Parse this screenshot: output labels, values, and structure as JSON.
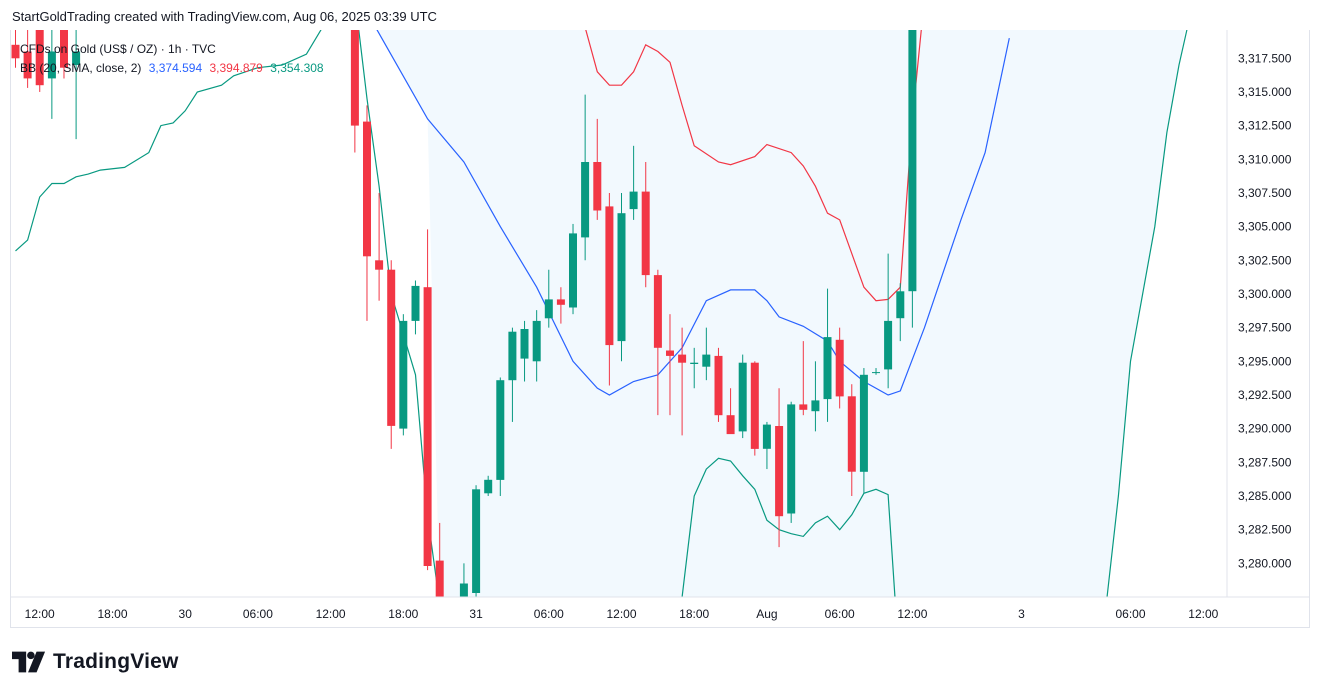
{
  "header": {
    "attribution": "StartGoldTrading created with TradingView.com, Aug 06, 2025 03:39 UTC"
  },
  "legend": {
    "symbol": "CFDs on Gold (US$ / OZ) · 1h · TVC",
    "indicator": "BB (20, SMA, close, 2)",
    "basis": "3,374.594",
    "upper": "3,394.879",
    "lower": "3,354.308"
  },
  "brand": {
    "wordmark": "TradingView"
  },
  "colors": {
    "up": "#089981",
    "down": "#f23645",
    "basis": "#2962ff",
    "upper": "#f23645",
    "lower": "#089981",
    "fill": "#e3f2fd"
  },
  "chart_data": {
    "type": "candlestick",
    "ylim": [
      3277.5,
      3319.6
    ],
    "y_ticks": [
      "3,317.500",
      "3,315.000",
      "3,312.500",
      "3,310.000",
      "3,307.500",
      "3,305.000",
      "3,302.500",
      "3,300.000",
      "3,297.500",
      "3,295.000",
      "3,292.500",
      "3,290.000",
      "3,287.500",
      "3,285.000",
      "3,282.500",
      "3,280.000"
    ],
    "x_ticks": [
      {
        "label": "12:00",
        "i": 2
      },
      {
        "label": "18:00",
        "i": 8
      },
      {
        "label": "30",
        "i": 14
      },
      {
        "label": "06:00",
        "i": 20
      },
      {
        "label": "12:00",
        "i": 26
      },
      {
        "label": "18:00",
        "i": 32
      },
      {
        "label": "31",
        "i": 38
      },
      {
        "label": "06:00",
        "i": 44
      },
      {
        "label": "12:00",
        "i": 50
      },
      {
        "label": "18:00",
        "i": 56
      },
      {
        "label": "Aug",
        "i": 62
      },
      {
        "label": "06:00",
        "i": 68
      },
      {
        "label": "12:00",
        "i": 74
      },
      {
        "label": "3",
        "i": 83
      },
      {
        "label": "06:00",
        "i": 92
      },
      {
        "label": "12:00",
        "i": 98
      }
    ],
    "candles": [
      {
        "i": 0,
        "o": 3318.5,
        "h": 3320.5,
        "l": 3316.8,
        "c": 3317.5
      },
      {
        "i": 1,
        "o": 3318.0,
        "h": 3320.0,
        "l": 3315.3,
        "c": 3316.0
      },
      {
        "i": 2,
        "o": 3320.0,
        "h": 3321.0,
        "l": 3315.0,
        "c": 3315.5
      },
      {
        "i": 3,
        "o": 3316.0,
        "h": 3321.5,
        "l": 3313.0,
        "c": 3318.0
      },
      {
        "i": 4,
        "o": 3321.0,
        "h": 3322.0,
        "l": 3316.0,
        "c": 3316.8
      },
      {
        "i": 5,
        "o": 3317.0,
        "h": 3322.0,
        "l": 3311.5,
        "c": 3318.0
      },
      {
        "i": 28,
        "o": 3322.0,
        "h": 3323.0,
        "l": 3310.5,
        "c": 3312.5
      },
      {
        "i": 29,
        "o": 3312.8,
        "h": 3314.0,
        "l": 3298.0,
        "c": 3302.8
      },
      {
        "i": 30,
        "o": 3302.5,
        "h": 3307.5,
        "l": 3299.5,
        "c": 3301.8
      },
      {
        "i": 31,
        "o": 3301.8,
        "h": 3302.5,
        "l": 3288.5,
        "c": 3290.2
      },
      {
        "i": 32,
        "o": 3290.0,
        "h": 3298.5,
        "l": 3289.5,
        "c": 3298.0
      },
      {
        "i": 33,
        "o": 3298.0,
        "h": 3301.0,
        "l": 3297.0,
        "c": 3300.6
      },
      {
        "i": 34,
        "o": 3300.5,
        "h": 3304.8,
        "l": 3279.5,
        "c": 3279.8
      },
      {
        "i": 35,
        "o": 3280.2,
        "h": 3283.0,
        "l": 3277.0,
        "c": 3277.5
      },
      {
        "i": 37,
        "o": 3277.5,
        "h": 3280.0,
        "l": 3277.0,
        "c": 3278.5
      },
      {
        "i": 38,
        "o": 3277.8,
        "h": 3285.8,
        "l": 3277.2,
        "c": 3285.5
      },
      {
        "i": 39,
        "o": 3285.2,
        "h": 3286.5,
        "l": 3285.0,
        "c": 3286.2
      },
      {
        "i": 40,
        "o": 3286.2,
        "h": 3293.8,
        "l": 3285.0,
        "c": 3293.6
      },
      {
        "i": 41,
        "o": 3293.6,
        "h": 3297.5,
        "l": 3290.5,
        "c": 3297.2
      },
      {
        "i": 42,
        "o": 3295.2,
        "h": 3298.0,
        "l": 3293.5,
        "c": 3297.4
      },
      {
        "i": 43,
        "o": 3295.0,
        "h": 3298.8,
        "l": 3293.5,
        "c": 3298.0
      },
      {
        "i": 44,
        "o": 3298.2,
        "h": 3301.8,
        "l": 3297.5,
        "c": 3299.6
      },
      {
        "i": 45,
        "o": 3299.6,
        "h": 3300.5,
        "l": 3297.8,
        "c": 3299.2
      },
      {
        "i": 46,
        "o": 3299.0,
        "h": 3305.2,
        "l": 3298.5,
        "c": 3304.5
      },
      {
        "i": 47,
        "o": 3304.2,
        "h": 3314.8,
        "l": 3302.5,
        "c": 3309.8
      },
      {
        "i": 48,
        "o": 3309.8,
        "h": 3313.0,
        "l": 3305.5,
        "c": 3306.2
      },
      {
        "i": 49,
        "o": 3306.5,
        "h": 3307.5,
        "l": 3293.2,
        "c": 3296.2
      },
      {
        "i": 50,
        "o": 3296.5,
        "h": 3307.5,
        "l": 3295.0,
        "c": 3306.0
      },
      {
        "i": 51,
        "o": 3306.3,
        "h": 3311.0,
        "l": 3305.5,
        "c": 3307.6
      },
      {
        "i": 52,
        "o": 3307.6,
        "h": 3309.8,
        "l": 3300.5,
        "c": 3301.4
      },
      {
        "i": 53,
        "o": 3301.4,
        "h": 3301.8,
        "l": 3291.0,
        "c": 3296.0
      },
      {
        "i": 54,
        "o": 3295.8,
        "h": 3298.5,
        "l": 3291.0,
        "c": 3295.4
      },
      {
        "i": 55,
        "o": 3295.5,
        "h": 3297.5,
        "l": 3289.5,
        "c": 3294.9
      },
      {
        "i": 56,
        "o": 3294.8,
        "h": 3296.0,
        "l": 3293.0,
        "c": 3294.9
      },
      {
        "i": 57,
        "o": 3294.6,
        "h": 3297.5,
        "l": 3293.6,
        "c": 3295.5
      },
      {
        "i": 58,
        "o": 3295.4,
        "h": 3296.0,
        "l": 3290.5,
        "c": 3291.0
      },
      {
        "i": 59,
        "o": 3291.0,
        "h": 3293.0,
        "l": 3289.8,
        "c": 3289.6
      },
      {
        "i": 60,
        "o": 3289.8,
        "h": 3295.5,
        "l": 3289.3,
        "c": 3294.9
      },
      {
        "i": 61,
        "o": 3294.9,
        "h": 3295.0,
        "l": 3288.0,
        "c": 3288.5
      },
      {
        "i": 62,
        "o": 3288.5,
        "h": 3290.5,
        "l": 3287.0,
        "c": 3290.3
      },
      {
        "i": 63,
        "o": 3290.2,
        "h": 3293.0,
        "l": 3281.2,
        "c": 3283.5
      },
      {
        "i": 64,
        "o": 3283.7,
        "h": 3292.0,
        "l": 3283.0,
        "c": 3291.8
      },
      {
        "i": 65,
        "o": 3291.8,
        "h": 3296.5,
        "l": 3291.0,
        "c": 3291.4
      },
      {
        "i": 66,
        "o": 3291.3,
        "h": 3295.0,
        "l": 3289.8,
        "c": 3292.1
      },
      {
        "i": 67,
        "o": 3292.2,
        "h": 3300.4,
        "l": 3290.5,
        "c": 3296.8
      },
      {
        "i": 68,
        "o": 3296.6,
        "h": 3297.5,
        "l": 3291.5,
        "c": 3292.4
      },
      {
        "i": 69,
        "o": 3292.4,
        "h": 3293.3,
        "l": 3285.0,
        "c": 3286.8
      },
      {
        "i": 70,
        "o": 3286.8,
        "h": 3294.5,
        "l": 3285.2,
        "c": 3294.0
      },
      {
        "i": 71,
        "o": 3294.2,
        "h": 3294.5,
        "l": 3294.0,
        "c": 3294.2
      },
      {
        "i": 72,
        "o": 3294.4,
        "h": 3303.0,
        "l": 3293.0,
        "c": 3298.0
      },
      {
        "i": 73,
        "o": 3298.2,
        "h": 3300.8,
        "l": 3296.5,
        "c": 3300.2
      },
      {
        "i": 74,
        "o": 3300.2,
        "h": 3322.0,
        "l": 3297.5,
        "c": 3321.0
      }
    ],
    "bands": {
      "basis": [
        [
          13,
          3320.5
        ],
        [
          20,
          3321.0
        ],
        [
          28,
          3322.5
        ],
        [
          34,
          3313.0
        ],
        [
          37,
          3309.8
        ],
        [
          40,
          3305.0
        ],
        [
          43,
          3300.5
        ],
        [
          46,
          3295.0
        ],
        [
          48,
          3293.0
        ],
        [
          49,
          3292.5
        ],
        [
          51,
          3293.5
        ],
        [
          53,
          3294.0
        ],
        [
          55,
          3296.0
        ],
        [
          57,
          3299.5
        ],
        [
          59,
          3300.3
        ],
        [
          61,
          3300.3
        ],
        [
          62,
          3299.5
        ],
        [
          63,
          3298.3
        ],
        [
          65,
          3297.6
        ],
        [
          67,
          3296.5
        ],
        [
          68,
          3295.0
        ],
        [
          70,
          3293.5
        ],
        [
          72,
          3292.5
        ],
        [
          73,
          3292.8
        ],
        [
          75,
          3297.5
        ],
        [
          78,
          3305.5
        ],
        [
          80,
          3310.5
        ],
        [
          82,
          3319.0
        ]
      ],
      "upper": [
        [
          47,
          3319.8
        ],
        [
          48,
          3316.5
        ],
        [
          49,
          3315.5
        ],
        [
          50,
          3315.5
        ],
        [
          51,
          3316.5
        ],
        [
          52,
          3318.5
        ],
        [
          53,
          3318.0
        ],
        [
          54,
          3317.2
        ],
        [
          55,
          3314.0
        ],
        [
          56,
          3311.0
        ],
        [
          58,
          3309.8
        ],
        [
          59,
          3309.6
        ],
        [
          61,
          3310.2
        ],
        [
          62,
          3311.1
        ],
        [
          64,
          3310.5
        ],
        [
          65,
          3309.5
        ],
        [
          66,
          3308.0
        ],
        [
          67,
          3306.0
        ],
        [
          68,
          3305.5
        ],
        [
          69,
          3303.0
        ],
        [
          70,
          3300.5
        ],
        [
          71,
          3299.5
        ],
        [
          72,
          3299.6
        ],
        [
          73,
          3300.5
        ],
        [
          74,
          3313.0
        ],
        [
          75,
          3322.0
        ]
      ],
      "lower": [
        [
          0,
          3303.2
        ],
        [
          1,
          3304.0
        ],
        [
          2,
          3307.2
        ],
        [
          3,
          3308.2
        ],
        [
          4,
          3308.2
        ],
        [
          5,
          3308.7
        ],
        [
          6,
          3308.9
        ],
        [
          7,
          3309.2
        ],
        [
          9,
          3309.4
        ],
        [
          11,
          3310.5
        ],
        [
          12,
          3312.5
        ],
        [
          13,
          3312.7
        ],
        [
          14,
          3313.6
        ],
        [
          15,
          3315.0
        ],
        [
          17,
          3315.5
        ],
        [
          18,
          3316.2
        ],
        [
          20,
          3316.8
        ],
        [
          22,
          3317.0
        ],
        [
          24,
          3317.8
        ],
        [
          26,
          3320.8
        ],
        [
          28,
          3322.0
        ],
        [
          29,
          3314.5
        ],
        [
          30,
          3308.0
        ],
        [
          31,
          3300.0
        ],
        [
          33,
          3294.0
        ],
        [
          34,
          3283.5
        ],
        [
          35,
          3277.0
        ],
        [
          55,
          3277.5
        ],
        [
          56,
          3285.0
        ],
        [
          57,
          3287.0
        ],
        [
          58,
          3287.8
        ],
        [
          59,
          3287.6
        ],
        [
          60,
          3286.5
        ],
        [
          61,
          3285.5
        ],
        [
          62,
          3283.2
        ],
        [
          63,
          3282.5
        ],
        [
          64,
          3282.2
        ],
        [
          65,
          3282.0
        ],
        [
          66,
          3283.0
        ],
        [
          67,
          3283.5
        ],
        [
          68,
          3282.5
        ],
        [
          69,
          3283.6
        ],
        [
          70,
          3285.2
        ],
        [
          71,
          3285.5
        ],
        [
          72,
          3285.1
        ],
        [
          72.6,
          3277.0
        ]
      ],
      "upper_right": [
        [
          90,
          3277.0
        ],
        [
          91,
          3285.0
        ],
        [
          92,
          3295.0
        ],
        [
          94,
          3305.0
        ],
        [
          95,
          3312.0
        ],
        [
          96,
          3317.0
        ],
        [
          97,
          3321.0
        ]
      ],
      "fill_polygon": [
        [
          13,
          3320.5
        ],
        [
          28,
          3322.5
        ],
        [
          34,
          3313.0
        ],
        [
          35,
          3277.0
        ],
        [
          90,
          3277.0
        ],
        [
          91,
          3285.0
        ],
        [
          92,
          3295.0
        ],
        [
          94,
          3305.0
        ],
        [
          95,
          3312.0
        ],
        [
          96,
          3317.0
        ],
        [
          97,
          3322.5
        ],
        [
          13,
          3322.5
        ]
      ]
    }
  }
}
